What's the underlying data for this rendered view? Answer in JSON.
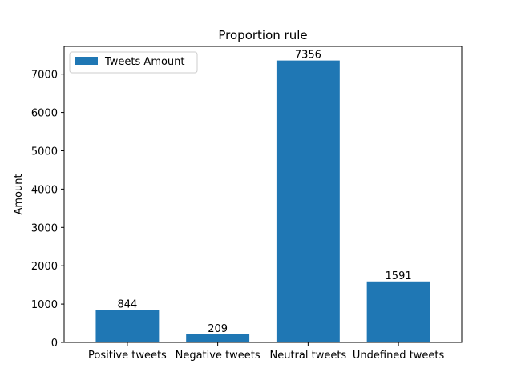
{
  "chart_data": {
    "type": "bar",
    "title": "Proportion rule",
    "xlabel": "",
    "ylabel": "Amount",
    "categories": [
      "Positive tweets",
      "Negative tweets",
      "Neutral tweets",
      "Undefined tweets"
    ],
    "series": [
      {
        "name": "Tweets Amount",
        "values": [
          844,
          209,
          7356,
          1591
        ],
        "color": "#1f77b4"
      }
    ],
    "ylim": [
      0,
      7723.8
    ],
    "yticks": [
      0,
      1000,
      2000,
      3000,
      4000,
      5000,
      6000,
      7000
    ],
    "data_labels": [
      "844",
      "209",
      "7356",
      "1591"
    ],
    "legend_position": "upper-left",
    "grid": false
  }
}
